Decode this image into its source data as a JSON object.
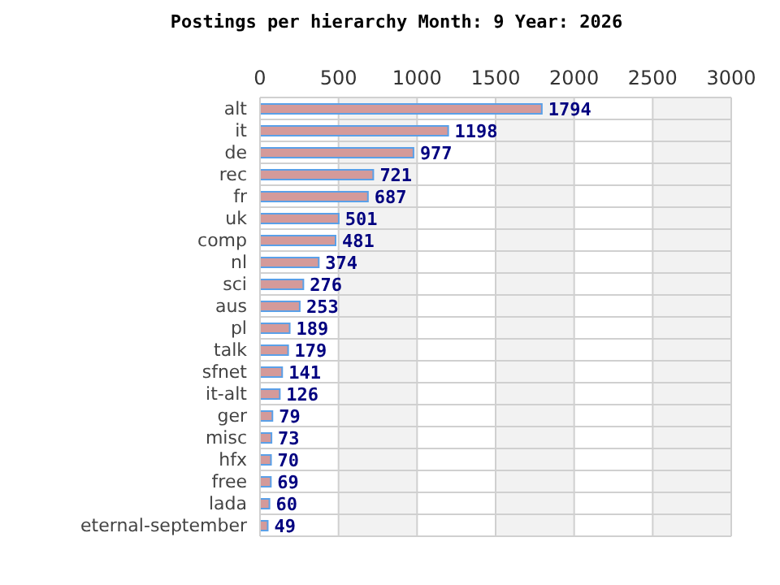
{
  "chart_data": {
    "type": "bar",
    "orientation": "horizontal",
    "title": "Postings per hierarchy Month: 9 Year: 2026",
    "categories": [
      "alt",
      "it",
      "de",
      "rec",
      "fr",
      "uk",
      "comp",
      "nl",
      "sci",
      "aus",
      "pl",
      "talk",
      "sfnet",
      "it-alt",
      "ger",
      "misc",
      "hfx",
      "free",
      "lada",
      "eternal-september"
    ],
    "values": [
      1794,
      1198,
      977,
      721,
      687,
      501,
      481,
      374,
      276,
      253,
      189,
      179,
      141,
      126,
      79,
      73,
      70,
      69,
      60,
      49
    ],
    "color": "#d49a9a",
    "xlim": [
      0,
      3000
    ],
    "xticks": [
      0,
      500,
      1000,
      1500,
      2000,
      2500,
      3000
    ],
    "grid": true,
    "data_labels": true
  }
}
